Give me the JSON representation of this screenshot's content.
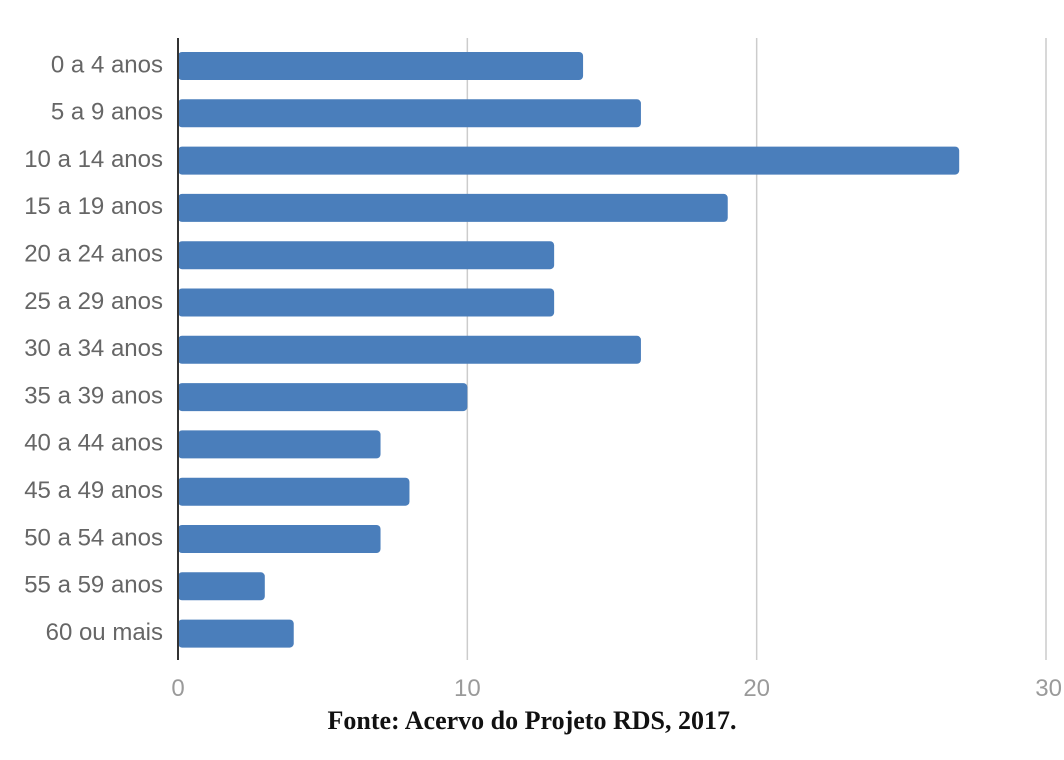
{
  "chart_data": {
    "type": "bar",
    "orientation": "horizontal",
    "categories": [
      "0 a 4 anos",
      "5 a 9 anos",
      "10 a 14 anos",
      "15 a 19 anos",
      "20 a 24 anos",
      "25 a 29 anos",
      "30 a 34 anos",
      "35 a 39 anos",
      "40 a 44 anos",
      "45 a 49 anos",
      "50 a 54 anos",
      "55 a 59 anos",
      "60 ou mais"
    ],
    "values": [
      14,
      16,
      27,
      19,
      13,
      13,
      16,
      10,
      7,
      8,
      7,
      3,
      4
    ],
    "xlim": [
      0,
      30
    ],
    "xticks": [
      0,
      10,
      20,
      30
    ],
    "grid": true,
    "bar_color": "#4a7ebb",
    "grid_color": "#cccccc"
  },
  "source": "Fonte: Acervo do Projeto RDS, 2017."
}
